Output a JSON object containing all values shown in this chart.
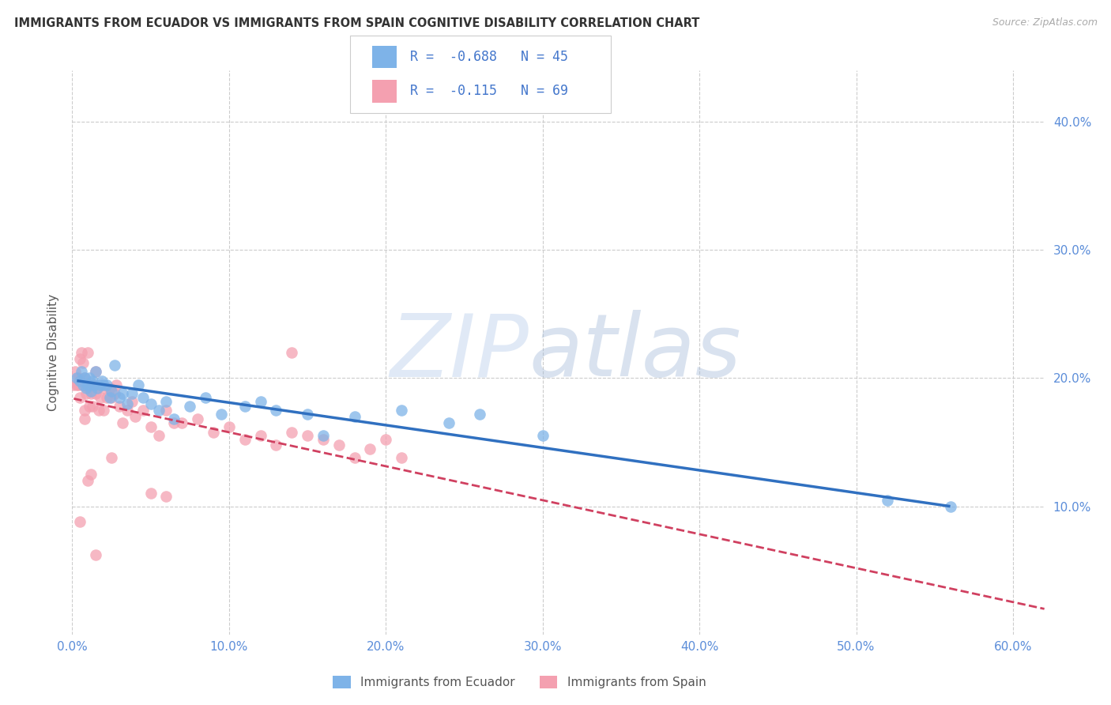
{
  "title": "IMMIGRANTS FROM ECUADOR VS IMMIGRANTS FROM SPAIN COGNITIVE DISABILITY CORRELATION CHART",
  "source": "Source: ZipAtlas.com",
  "ylabel": "Cognitive Disability",
  "xlim": [
    0.0,
    0.62
  ],
  "ylim": [
    0.0,
    0.44
  ],
  "xticks": [
    0.0,
    0.1,
    0.2,
    0.3,
    0.4,
    0.5,
    0.6
  ],
  "yticks": [
    0.1,
    0.2,
    0.3,
    0.4
  ],
  "ecuador_color": "#7eb3e8",
  "spain_color": "#f4a0b0",
  "ecuador_line_color": "#3070c0",
  "spain_line_color": "#d04060",
  "ecuador_R": -0.688,
  "ecuador_N": 45,
  "spain_R": -0.115,
  "spain_N": 69,
  "legend_label_ecuador": "Immigrants from Ecuador",
  "legend_label_spain": "Immigrants from Spain",
  "ecuador_x": [
    0.003,
    0.005,
    0.006,
    0.007,
    0.008,
    0.009,
    0.01,
    0.011,
    0.012,
    0.013,
    0.014,
    0.015,
    0.016,
    0.018,
    0.019,
    0.02,
    0.022,
    0.024,
    0.025,
    0.027,
    0.03,
    0.032,
    0.035,
    0.038,
    0.042,
    0.045,
    0.05,
    0.055,
    0.06,
    0.065,
    0.075,
    0.085,
    0.095,
    0.11,
    0.12,
    0.13,
    0.15,
    0.16,
    0.18,
    0.21,
    0.24,
    0.26,
    0.3,
    0.52,
    0.56
  ],
  "ecuador_y": [
    0.2,
    0.198,
    0.205,
    0.195,
    0.2,
    0.192,
    0.195,
    0.2,
    0.19,
    0.198,
    0.195,
    0.205,
    0.192,
    0.195,
    0.198,
    0.195,
    0.195,
    0.185,
    0.19,
    0.21,
    0.185,
    0.188,
    0.18,
    0.188,
    0.195,
    0.185,
    0.18,
    0.175,
    0.182,
    0.168,
    0.178,
    0.185,
    0.172,
    0.178,
    0.182,
    0.175,
    0.172,
    0.155,
    0.17,
    0.175,
    0.165,
    0.172,
    0.155,
    0.105,
    0.1
  ],
  "spain_x": [
    0.001,
    0.002,
    0.003,
    0.004,
    0.004,
    0.005,
    0.005,
    0.006,
    0.006,
    0.007,
    0.007,
    0.008,
    0.008,
    0.009,
    0.009,
    0.01,
    0.01,
    0.011,
    0.012,
    0.012,
    0.013,
    0.014,
    0.015,
    0.015,
    0.016,
    0.017,
    0.018,
    0.019,
    0.02,
    0.021,
    0.022,
    0.024,
    0.025,
    0.027,
    0.028,
    0.03,
    0.032,
    0.035,
    0.038,
    0.04,
    0.045,
    0.05,
    0.055,
    0.06,
    0.065,
    0.07,
    0.08,
    0.09,
    0.1,
    0.11,
    0.12,
    0.13,
    0.14,
    0.15,
    0.16,
    0.17,
    0.18,
    0.19,
    0.2,
    0.21,
    0.005,
    0.01,
    0.015,
    0.14,
    0.008,
    0.012,
    0.025,
    0.05,
    0.06
  ],
  "spain_y": [
    0.195,
    0.205,
    0.195,
    0.2,
    0.195,
    0.185,
    0.215,
    0.195,
    0.22,
    0.212,
    0.195,
    0.2,
    0.175,
    0.188,
    0.195,
    0.192,
    0.22,
    0.178,
    0.188,
    0.195,
    0.178,
    0.195,
    0.188,
    0.205,
    0.192,
    0.175,
    0.185,
    0.195,
    0.175,
    0.192,
    0.185,
    0.192,
    0.185,
    0.188,
    0.195,
    0.178,
    0.165,
    0.175,
    0.182,
    0.17,
    0.175,
    0.162,
    0.155,
    0.175,
    0.165,
    0.165,
    0.168,
    0.158,
    0.162,
    0.152,
    0.155,
    0.148,
    0.158,
    0.155,
    0.152,
    0.148,
    0.138,
    0.145,
    0.152,
    0.138,
    0.088,
    0.12,
    0.062,
    0.22,
    0.168,
    0.125,
    0.138,
    0.11,
    0.108
  ],
  "ec_line_x0": 0.003,
  "ec_line_x1": 0.56,
  "ec_line_y0": 0.198,
  "ec_line_y1": 0.1,
  "sp_line_x0": 0.001,
  "sp_line_x1": 0.62,
  "sp_line_y0": 0.184,
  "sp_line_y1": 0.02
}
